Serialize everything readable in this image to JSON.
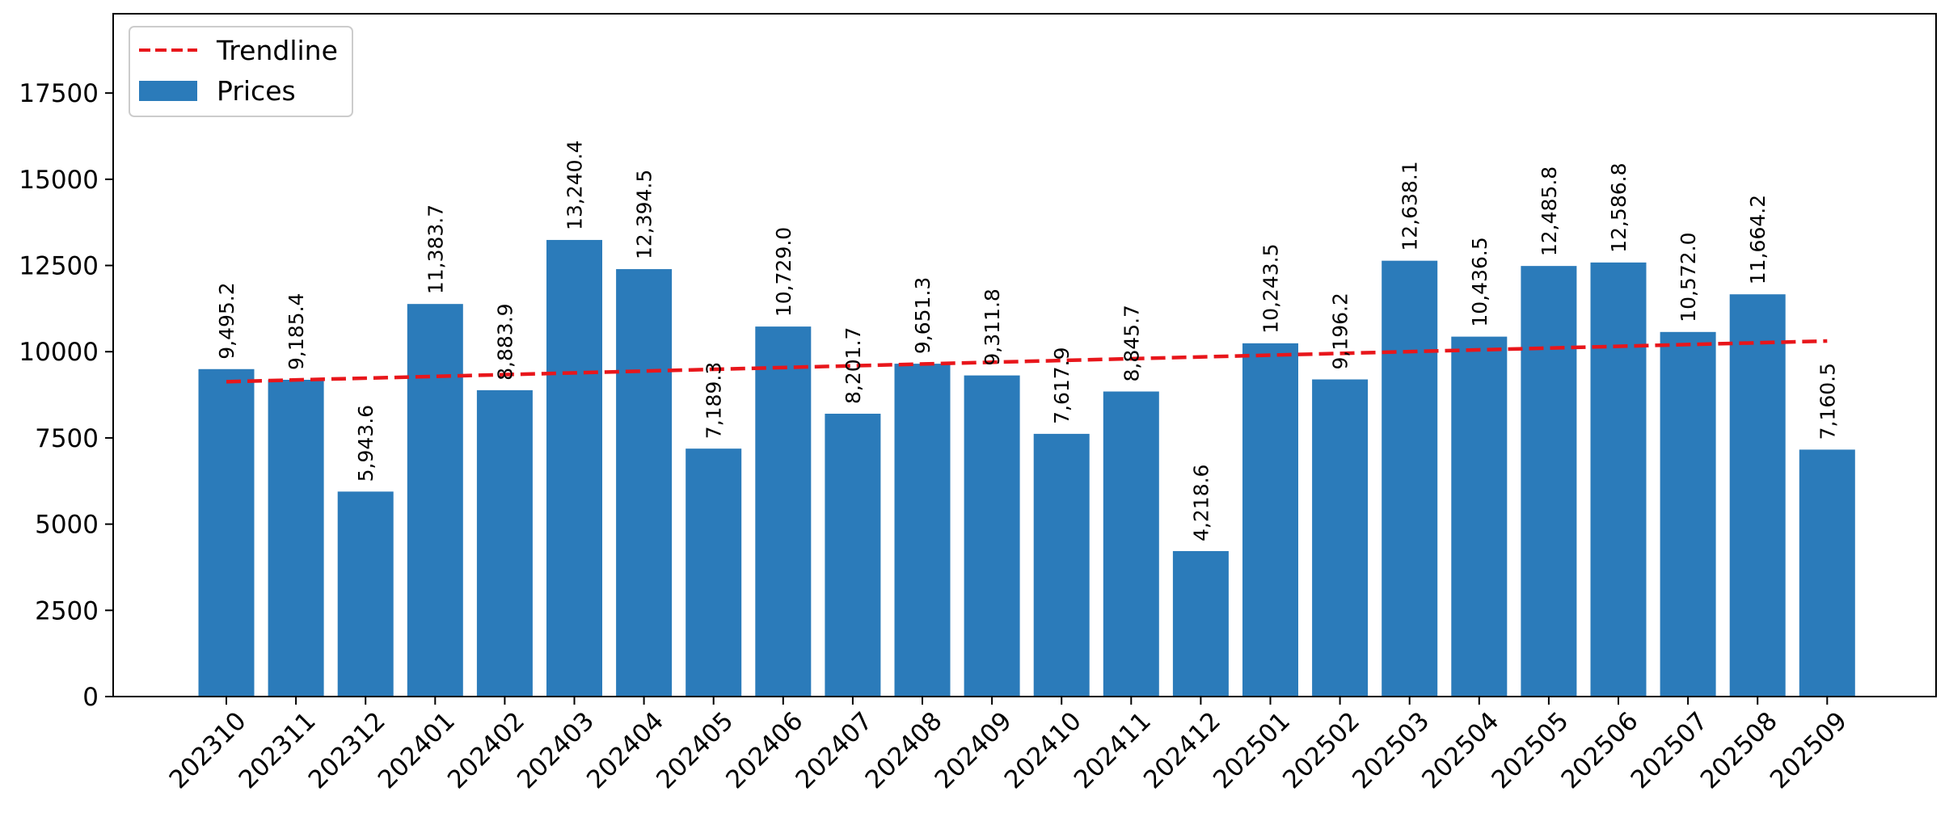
{
  "chart_data": {
    "type": "bar",
    "title": "",
    "xlabel": "",
    "ylabel": "",
    "categories": [
      "202310",
      "202311",
      "202312",
      "202401",
      "202402",
      "202403",
      "202404",
      "202405",
      "202406",
      "202407",
      "202408",
      "202409",
      "202410",
      "202411",
      "202412",
      "202501",
      "202502",
      "202503",
      "202504",
      "202505",
      "202506",
      "202507",
      "202508",
      "202509"
    ],
    "series": [
      {
        "name": "Prices",
        "type": "bar",
        "color": "#2b7bba",
        "values": [
          9495.2,
          9185.4,
          5943.6,
          11383.7,
          8883.9,
          13240.4,
          12394.5,
          7189.3,
          10729.0,
          8201.7,
          9651.3,
          9311.8,
          7617.9,
          8845.7,
          4218.6,
          10243.5,
          9196.2,
          12638.1,
          10436.5,
          12485.8,
          12586.8,
          10572.0,
          11664.2,
          7160.5
        ],
        "data_labels": [
          "9,495.2",
          "9,185.4",
          "5,943.6",
          "11,383.7",
          "8,883.9",
          "13,240.4",
          "12,394.5",
          "7,189.3",
          "10,729.0",
          "8,201.7",
          "9,651.3",
          "9,311.8",
          "7,617.9",
          "8,845.7",
          "4,218.6",
          "10,243.5",
          "9,196.2",
          "12,638.1",
          "10,436.5",
          "12,485.8",
          "12,586.8",
          "10,572.0",
          "11,664.2",
          "7,160.5"
        ]
      },
      {
        "name": "Trendline",
        "type": "line",
        "style": "dashed",
        "color": "#e8161b",
        "start_value": 9130,
        "end_value": 10310
      }
    ],
    "ylim": [
      0,
      19800
    ],
    "yticks": [
      0,
      2500,
      5000,
      7500,
      10000,
      12500,
      15000,
      17500
    ],
    "ytick_labels": [
      "0",
      "2500",
      "5000",
      "7500",
      "10000",
      "12500",
      "15000",
      "17500"
    ],
    "grid": false,
    "legend": {
      "position": "top-left",
      "entries": [
        "Trendline",
        "Prices"
      ]
    }
  }
}
